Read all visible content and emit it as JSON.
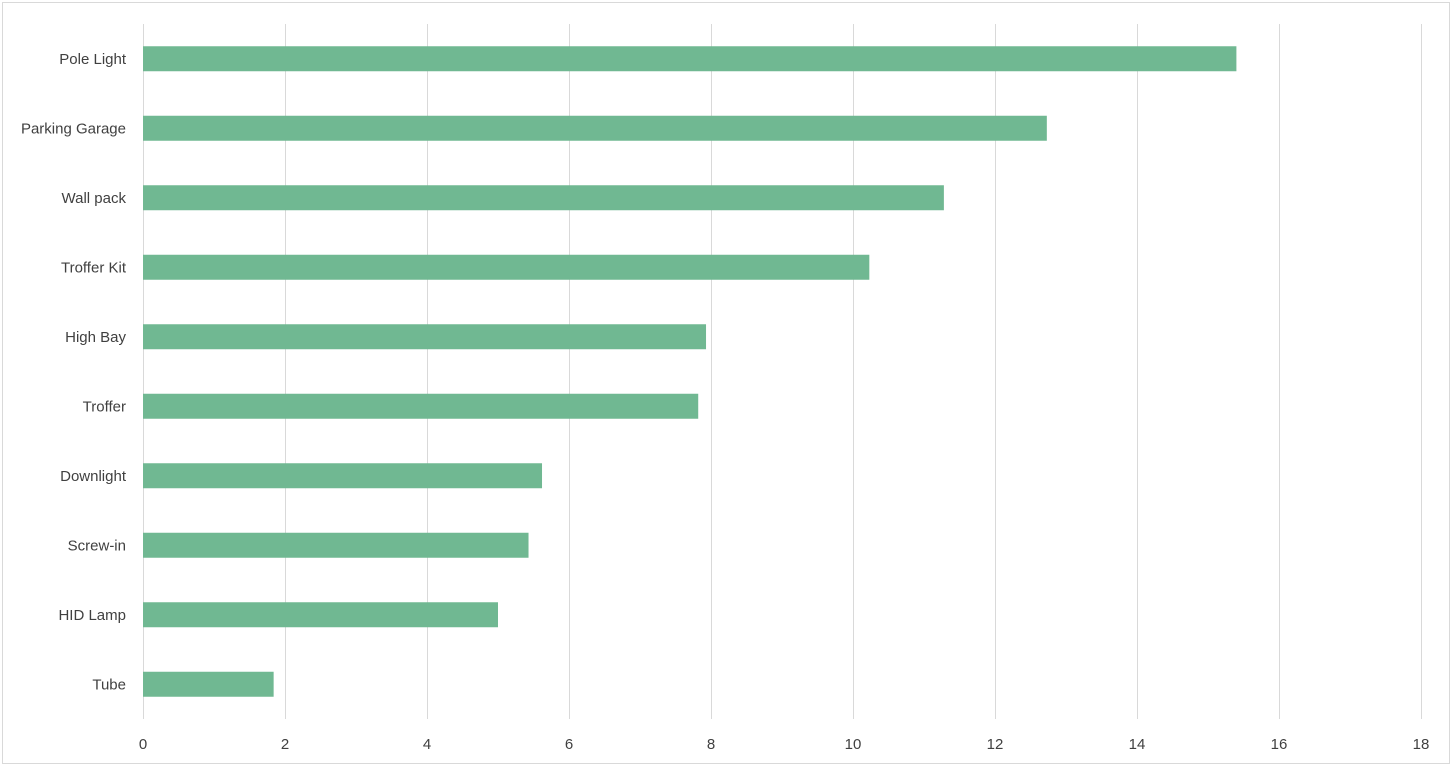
{
  "chart_data": {
    "type": "bar",
    "orientation": "horizontal",
    "title": "",
    "xlabel": "",
    "ylabel": "",
    "categories": [
      "Pole Light",
      "Parking Garage",
      "Wall pack",
      "Troffer Kit",
      "High Bay",
      "Troffer",
      "Downlight",
      "Screw-in",
      "HID Lamp",
      "Tube"
    ],
    "values": [
      15.4,
      12.73,
      11.28,
      10.23,
      7.93,
      7.82,
      5.62,
      5.43,
      5.0,
      1.84
    ],
    "xlim": [
      0,
      18
    ],
    "xticks": [
      "0",
      "2",
      "4",
      "6",
      "8",
      "10",
      "12",
      "14",
      "16",
      "18"
    ],
    "grid": true,
    "legend": "none",
    "bar_color": "#70b892",
    "grid_color": "#d9d9d9"
  }
}
